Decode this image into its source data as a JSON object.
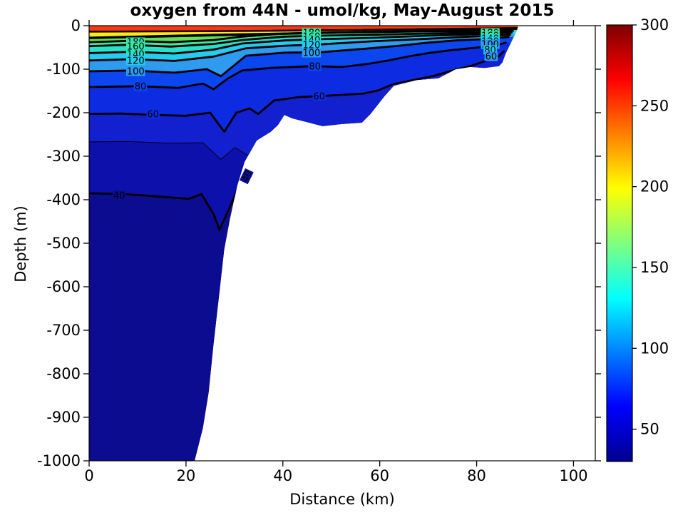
{
  "figure": {
    "title": "oxygen from 44N - umol/kg, May-August 2015",
    "xlabel": "Distance (km)",
    "ylabel": "Depth (m)"
  },
  "chart_data": {
    "type": "filled-contour-section",
    "title": "oxygen from 44N - umol/kg, May-August 2015",
    "variable": "oxygen",
    "units": "umol/kg",
    "section": "44N",
    "period": "May-August 2015",
    "xlabel": "Distance (km)",
    "ylabel": "Depth (m)",
    "x_range": [
      0,
      104.5
    ],
    "x_ticks": [
      0,
      20,
      40,
      60,
      80,
      100
    ],
    "y_range": [
      -1000,
      0
    ],
    "y_ticks": [
      0,
      -100,
      -200,
      -300,
      -400,
      -500,
      -600,
      -700,
      -800,
      -900,
      -1000
    ],
    "grid": false,
    "contour_interval_labeled": 20,
    "labeled_levels": [
      40,
      60,
      80,
      100,
      120,
      140,
      160,
      180
    ],
    "colorbar": {
      "min": 30,
      "max": 300,
      "ticks": [
        50,
        100,
        150,
        200,
        250,
        300
      ],
      "colormap": "jet",
      "stops": [
        {
          "v": 300,
          "c": "#7f0000"
        },
        {
          "v": 266,
          "c": "#ff0000"
        },
        {
          "v": 199,
          "c": "#ffff00"
        },
        {
          "v": 131,
          "c": "#00ffff"
        },
        {
          "v": 64,
          "c": "#0000ff"
        },
        {
          "v": 30,
          "c": "#00008f"
        }
      ]
    },
    "region_fill": "#0c0c90",
    "region": [
      [
        0,
        0
      ],
      [
        88.5,
        0
      ],
      [
        88.5,
        -6.6
      ],
      [
        88.1,
        -14.8
      ],
      [
        87.2,
        -36
      ],
      [
        86,
        -64
      ],
      [
        85.3,
        -85
      ],
      [
        84.6,
        -93
      ],
      [
        81.6,
        -97
      ],
      [
        78.7,
        -95
      ],
      [
        75.7,
        -100
      ],
      [
        72.1,
        -121
      ],
      [
        67.6,
        -125
      ],
      [
        62.9,
        -138
      ],
      [
        61,
        -162
      ],
      [
        58.1,
        -203
      ],
      [
        56.3,
        -223
      ],
      [
        52.2,
        -226
      ],
      [
        48.2,
        -231
      ],
      [
        41.9,
        -213
      ],
      [
        40.3,
        -205
      ],
      [
        39,
        -228
      ],
      [
        37.5,
        -244
      ],
      [
        34.6,
        -264
      ],
      [
        32.1,
        -313
      ],
      [
        30.6,
        -367
      ],
      [
        29.1,
        -444
      ],
      [
        27.9,
        -515
      ],
      [
        26.8,
        -625
      ],
      [
        25.7,
        -733
      ],
      [
        24.7,
        -843
      ],
      [
        23.5,
        -925
      ],
      [
        21.8,
        -1000
      ],
      [
        0,
        -1000
      ]
    ],
    "contours": [
      {
        "value": 40,
        "thick": true,
        "band_above": "#0d10aa",
        "points": [
          [
            0,
            -385
          ],
          [
            7.4,
            -387
          ],
          [
            14.7,
            -393
          ],
          [
            20.6,
            -398
          ],
          [
            23.2,
            -387
          ],
          [
            25.7,
            -433
          ],
          [
            26.9,
            -469
          ],
          [
            28.4,
            -433
          ],
          [
            30.9,
            -370
          ],
          [
            33.4,
            -329
          ],
          [
            34.9,
            -315
          ]
        ]
      },
      {
        "value": 50,
        "thick": false,
        "band_above": "#1220cf",
        "points": [
          [
            0,
            -267
          ],
          [
            8.1,
            -266
          ],
          [
            16.9,
            -270
          ],
          [
            23.5,
            -269
          ],
          [
            27.2,
            -307
          ],
          [
            30.1,
            -280
          ],
          [
            32.8,
            -298
          ]
        ]
      },
      {
        "value": 60,
        "thick": true,
        "band_above": "#0d2ce2",
        "points": [
          [
            0,
            -203
          ],
          [
            6.6,
            -202
          ],
          [
            13.2,
            -205
          ],
          [
            19.9,
            -207
          ],
          [
            25,
            -200
          ],
          [
            27.9,
            -244
          ],
          [
            30.4,
            -200
          ],
          [
            33.1,
            -190
          ],
          [
            34.9,
            -203
          ],
          [
            38.2,
            -172
          ],
          [
            43.4,
            -164
          ],
          [
            47.5,
            -162
          ],
          [
            52.2,
            -159
          ],
          [
            56.6,
            -156
          ],
          [
            59.6,
            -149
          ],
          [
            62.9,
            -134
          ],
          [
            66.9,
            -125
          ],
          [
            71.3,
            -115
          ],
          [
            75,
            -103
          ],
          [
            78.7,
            -93
          ],
          [
            82.4,
            -79
          ],
          [
            84.6,
            -70
          ],
          [
            85.6,
            -59
          ]
        ]
      },
      {
        "value": 80,
        "thick": true,
        "band_above": "#0b46ef",
        "points": [
          [
            0,
            -141
          ],
          [
            10.3,
            -139
          ],
          [
            18.4,
            -143
          ],
          [
            23.5,
            -133
          ],
          [
            25.7,
            -146
          ],
          [
            28.7,
            -121
          ],
          [
            31.6,
            -103
          ],
          [
            37.5,
            -97
          ],
          [
            46.3,
            -93
          ],
          [
            52.2,
            -95
          ],
          [
            57.4,
            -88
          ],
          [
            61.8,
            -80
          ],
          [
            66.2,
            -70
          ],
          [
            70.6,
            -62
          ],
          [
            75,
            -56
          ],
          [
            79.4,
            -51
          ],
          [
            83.8,
            -46
          ],
          [
            86,
            -39
          ]
        ]
      },
      {
        "value": 100,
        "thick": true,
        "band_above": "#2e9bef",
        "points": [
          [
            0,
            -105
          ],
          [
            8.8,
            -103
          ],
          [
            17.6,
            -108
          ],
          [
            24.3,
            -100
          ],
          [
            27.2,
            -116
          ],
          [
            32.4,
            -69
          ],
          [
            40.4,
            -62
          ],
          [
            47.8,
            -61
          ],
          [
            58.1,
            -52
          ],
          [
            64,
            -46
          ],
          [
            69.9,
            -39
          ],
          [
            75.7,
            -34
          ],
          [
            81.6,
            -31
          ],
          [
            86.6,
            -26
          ]
        ]
      },
      {
        "value": 120,
        "thick": true,
        "band_above": "#23ccf0",
        "points": [
          [
            0,
            -80
          ],
          [
            8.8,
            -77
          ],
          [
            17.6,
            -81
          ],
          [
            25.7,
            -71
          ],
          [
            32.4,
            -52
          ],
          [
            40.4,
            -46
          ],
          [
            47.8,
            -43
          ],
          [
            58.1,
            -36
          ],
          [
            69.9,
            -30
          ],
          [
            78.7,
            -25
          ],
          [
            86.9,
            -21
          ]
        ]
      },
      {
        "value": 140,
        "thick": true,
        "band_above": "#26e2c8",
        "points": [
          [
            0,
            -63
          ],
          [
            8.8,
            -60
          ],
          [
            17.6,
            -64
          ],
          [
            25.7,
            -55
          ],
          [
            31.6,
            -41
          ],
          [
            40.4,
            -34
          ],
          [
            47.8,
            -31
          ],
          [
            58.1,
            -28
          ],
          [
            69.9,
            -23
          ],
          [
            78.7,
            -20
          ],
          [
            87.2,
            -16
          ]
        ]
      },
      {
        "value": 160,
        "thick": true,
        "band_above": "#3be9a4",
        "points": [
          [
            0,
            -47
          ],
          [
            8.1,
            -44
          ],
          [
            16.9,
            -48
          ],
          [
            25.7,
            -42
          ],
          [
            31.6,
            -33
          ],
          [
            40.4,
            -25
          ],
          [
            47.8,
            -23
          ],
          [
            58.1,
            -21
          ],
          [
            69.9,
            -18
          ],
          [
            78.7,
            -16
          ],
          [
            87.5,
            -12
          ]
        ]
      },
      {
        "value": 180,
        "thick": true,
        "band_above": "#63e05a",
        "points": [
          [
            0,
            -38
          ],
          [
            8.1,
            -35
          ],
          [
            16.9,
            -38
          ],
          [
            25.7,
            -33
          ],
          [
            31.6,
            -25
          ],
          [
            40.4,
            -18
          ],
          [
            47.8,
            -16
          ],
          [
            58.1,
            -15
          ],
          [
            69.9,
            -13
          ],
          [
            78.7,
            -12
          ],
          [
            87.8,
            -7
          ]
        ]
      },
      {
        "value": 190,
        "thick": false,
        "band_above": "#b8e84a",
        "points": [
          [
            0,
            -30
          ],
          [
            25.7,
            -24
          ],
          [
            55.1,
            -16.5
          ],
          [
            88.2,
            -8
          ]
        ]
      },
      {
        "value": 200,
        "thick": true,
        "band_above": "#ffe81e",
        "points": [
          [
            0,
            -27.5
          ],
          [
            25.7,
            -21
          ],
          [
            55.1,
            -15
          ],
          [
            88.2,
            -7.4
          ]
        ]
      },
      {
        "value": 220,
        "thick": false,
        "band_above": "#ffa500",
        "points": [
          [
            0,
            -15.1
          ],
          [
            25.7,
            -13.9
          ],
          [
            55.1,
            -11.5
          ],
          [
            88.4,
            -5.7
          ]
        ]
      },
      {
        "value": 240,
        "thick": false,
        "band_above": "#ff5f00",
        "points": [
          [
            0,
            -13.9
          ],
          [
            25.7,
            -12.8
          ],
          [
            55.1,
            -10.2
          ],
          [
            88.4,
            -4.9
          ]
        ]
      },
      {
        "value": 260,
        "thick": false,
        "band_above": "#f63914",
        "points": [
          [
            0,
            -12.3
          ],
          [
            25.7,
            -11.1
          ],
          [
            55.1,
            -8.5
          ],
          [
            88.5,
            -4.1
          ]
        ]
      }
    ],
    "contour_labels": [
      {
        "text": "180",
        "x": 9.6,
        "y": -37.7,
        "bg": "#3be9a4",
        "rot": 0
      },
      {
        "text": "160",
        "x": 9.6,
        "y": -47.5,
        "bg": "#3be9a4",
        "rot": 0
      },
      {
        "text": "140",
        "x": 9.6,
        "y": -65.6,
        "bg": "#26e2c8",
        "rot": 0
      },
      {
        "text": "120",
        "x": 9.6,
        "y": -80,
        "bg": "#23ccf0",
        "rot": 0
      },
      {
        "text": "100",
        "x": 9.6,
        "y": -105,
        "bg": "#2e9bef",
        "rot": 0
      },
      {
        "text": "80",
        "x": 10.6,
        "y": -139.3,
        "bg": "#0b46ef",
        "rot": 0
      },
      {
        "text": "60",
        "x": 13.2,
        "y": -203.3,
        "bg": "#0d2ce2",
        "rot": 0
      },
      {
        "text": "40",
        "x": 6.2,
        "y": -390.2,
        "bg": "#0c0c90",
        "rot": 0
      },
      {
        "text": "180",
        "x": 45.9,
        "y": -16.4,
        "bg": "#3be9a4",
        "rot": 0
      },
      {
        "text": "160",
        "x": 45.9,
        "y": -24.6,
        "bg": "#3be9a4",
        "rot": 0
      },
      {
        "text": "140",
        "x": 45.9,
        "y": -32.8,
        "bg": "#26e2c8",
        "rot": 0
      },
      {
        "text": "120",
        "x": 45.9,
        "y": -44.3,
        "bg": "#23ccf0",
        "rot": 0
      },
      {
        "text": "100",
        "x": 45.9,
        "y": -62.3,
        "bg": "#2e9bef",
        "rot": 0
      },
      {
        "text": "80",
        "x": 46.6,
        "y": -93.4,
        "bg": "#0b46ef",
        "rot": 0
      },
      {
        "text": "60",
        "x": 47.5,
        "y": -162.3,
        "bg": "#0d2ce2",
        "rot": 0
      },
      {
        "text": "180",
        "x": 82.8,
        "y": -16.4,
        "bg": "#3be9a4",
        "rot": 0
      },
      {
        "text": "160",
        "x": 82.8,
        "y": -23,
        "bg": "#3be9a4",
        "rot": 0
      },
      {
        "text": "140",
        "x": 82.8,
        "y": -29.5,
        "bg": "#26e2c8",
        "rot": 0
      },
      {
        "text": "120",
        "x": 82.8,
        "y": -36,
        "bg": "#23ccf0",
        "rot": 0
      },
      {
        "text": "100",
        "x": 82.8,
        "y": -42.6,
        "bg": "#2e9bef",
        "rot": 0
      },
      {
        "text": "80",
        "x": 82.8,
        "y": -55.7,
        "bg": "#23ccf0",
        "rot": 0
      },
      {
        "text": "60",
        "x": 83,
        "y": -70.5,
        "bg": "#2e9bef",
        "rot": 0
      },
      {
        "text": "40",
        "x": 32.5,
        "y": -346,
        "bg": "#0c0c90",
        "rot": -64
      }
    ]
  }
}
